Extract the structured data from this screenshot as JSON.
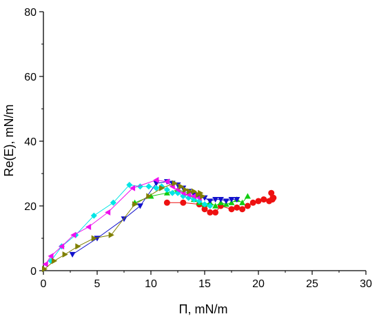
{
  "chart_data": {
    "type": "scatter",
    "title": "",
    "xlabel": "Π, mN/m",
    "ylabel": "Re(E), mN/m",
    "xlim": [
      0,
      30
    ],
    "ylim": [
      0,
      80
    ],
    "x_ticks": [
      0,
      5,
      10,
      15,
      20,
      25,
      30
    ],
    "y_ticks": [
      0,
      20,
      40,
      60,
      80
    ],
    "x_tick_labels": [
      "0",
      "5",
      "10",
      "15",
      "20",
      "25",
      "30"
    ],
    "y_tick_labels": [
      "0",
      "20",
      "40",
      "60",
      "80"
    ],
    "grid": false,
    "legend": "none",
    "series": [
      {
        "color": "#ee1111",
        "marker": "circle",
        "points": [
          [
            11.5,
            21
          ],
          [
            13,
            21
          ],
          [
            14.5,
            20.5
          ],
          [
            15,
            19
          ],
          [
            15.5,
            18
          ],
          [
            16,
            18
          ],
          [
            16.5,
            20
          ],
          [
            17.5,
            19
          ],
          [
            18,
            19.5
          ],
          [
            18.5,
            19
          ],
          [
            19,
            20
          ],
          [
            19.5,
            21
          ],
          [
            20,
            21.5
          ],
          [
            20.5,
            22
          ],
          [
            21,
            21.5
          ],
          [
            21.2,
            24
          ],
          [
            21.3,
            22
          ],
          [
            21.4,
            22.5
          ]
        ]
      },
      {
        "color": "#11cc11",
        "marker": "triangle-up",
        "points": [
          [
            8.5,
            21
          ],
          [
            10,
            23
          ],
          [
            11.5,
            24
          ],
          [
            12.5,
            25
          ],
          [
            13.5,
            24
          ],
          [
            14,
            22
          ],
          [
            14.5,
            21
          ],
          [
            15,
            20.5
          ],
          [
            15.5,
            21
          ],
          [
            16,
            20
          ],
          [
            16.5,
            21
          ],
          [
            17,
            20.5
          ],
          [
            17.5,
            21
          ],
          [
            18,
            22
          ],
          [
            18.5,
            21
          ],
          [
            19,
            23
          ]
        ]
      },
      {
        "color": "#1111cc",
        "marker": "triangle-down",
        "points": [
          [
            2.7,
            5
          ],
          [
            5,
            10
          ],
          [
            7.5,
            16
          ],
          [
            9,
            20
          ],
          [
            10.5,
            27
          ],
          [
            11.5,
            27.5
          ],
          [
            12,
            27
          ],
          [
            12.5,
            26.5
          ],
          [
            13,
            25.5
          ],
          [
            13.5,
            24.5
          ],
          [
            14,
            23.5
          ],
          [
            14.5,
            22.5
          ],
          [
            15,
            22.5
          ],
          [
            15.5,
            21.5
          ],
          [
            16,
            22
          ],
          [
            16.5,
            22
          ],
          [
            17,
            21.5
          ],
          [
            17.5,
            22
          ],
          [
            18,
            22
          ]
        ]
      },
      {
        "color": "#00e5e5",
        "marker": "diamond",
        "points": [
          [
            0.7,
            3
          ],
          [
            1.7,
            7.5
          ],
          [
            3,
            11
          ],
          [
            4.7,
            17
          ],
          [
            6.5,
            21
          ],
          [
            8,
            26.5
          ],
          [
            9,
            26
          ],
          [
            9.8,
            26
          ],
          [
            10.5,
            25.5
          ],
          [
            11,
            26
          ],
          [
            11.5,
            25
          ],
          [
            12,
            24
          ],
          [
            12.5,
            24
          ],
          [
            13,
            23
          ],
          [
            13.5,
            22.5
          ],
          [
            14,
            22
          ],
          [
            14.5,
            21.5
          ],
          [
            15,
            20.5
          ],
          [
            15.5,
            20
          ]
        ]
      },
      {
        "color": "#ee11ee",
        "marker": "triangle-left",
        "points": [
          [
            0.2,
            2
          ],
          [
            0.7,
            4.5
          ],
          [
            1.7,
            7.5
          ],
          [
            2.8,
            11
          ],
          [
            4.2,
            13.5
          ],
          [
            6,
            18
          ],
          [
            8.3,
            25.5
          ],
          [
            10.5,
            28
          ],
          [
            11.5,
            27.5
          ],
          [
            12,
            26
          ],
          [
            12.5,
            25
          ],
          [
            13,
            24
          ],
          [
            13.5,
            23.5
          ],
          [
            14,
            23
          ],
          [
            14.5,
            22.5
          ]
        ]
      },
      {
        "color": "#808000",
        "marker": "triangle-right",
        "points": [
          [
            0.1,
            0.5
          ],
          [
            1,
            3
          ],
          [
            2,
            5
          ],
          [
            3.2,
            7.5
          ],
          [
            4.7,
            10
          ],
          [
            6.3,
            11
          ],
          [
            8.5,
            20.5
          ],
          [
            9.8,
            23
          ],
          [
            11,
            25.5
          ],
          [
            12.2,
            27
          ],
          [
            12.8,
            26
          ],
          [
            13.2,
            25
          ],
          [
            13.6,
            24.5
          ],
          [
            14,
            24.5
          ],
          [
            14.4,
            23.5
          ],
          [
            14.6,
            24
          ],
          [
            14.8,
            23
          ]
        ]
      }
    ]
  }
}
